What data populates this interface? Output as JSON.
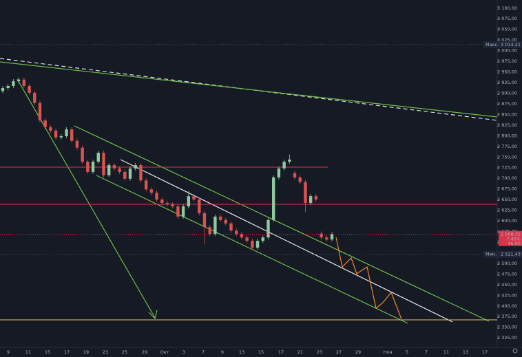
{
  "chart_data": {
    "type": "candlestick",
    "up_color": "#8fc9a0",
    "down_color": "#d9534f",
    "ylim": [
      2280,
      3119
    ],
    "yticks": [
      {
        "value": 3100,
        "label": "3 100,00"
      },
      {
        "value": 3075,
        "label": "3 075,00"
      },
      {
        "value": 3050,
        "label": "3 050,00"
      },
      {
        "value": 3025,
        "label": "3 025,00"
      },
      {
        "value": 3000,
        "label": "3 000,00"
      },
      {
        "value": 2975,
        "label": "2 975,00"
      },
      {
        "value": 2950,
        "label": "2 950,00"
      },
      {
        "value": 2925,
        "label": "2 925,00"
      },
      {
        "value": 2900,
        "label": "2 900,00"
      },
      {
        "value": 2875,
        "label": "2 875,00"
      },
      {
        "value": 2850,
        "label": "2 850,00"
      },
      {
        "value": 2825,
        "label": "2 825,00"
      },
      {
        "value": 2800,
        "label": "2 800,00"
      },
      {
        "value": 2775,
        "label": "2 775,00"
      },
      {
        "value": 2750,
        "label": "2 750,00"
      },
      {
        "value": 2725,
        "label": "2 725,00"
      },
      {
        "value": 2700,
        "label": "2 700,00"
      },
      {
        "value": 2675,
        "label": "2 675,00"
      },
      {
        "value": 2650,
        "label": "2 650,00"
      },
      {
        "value": 2625,
        "label": "2 625,00"
      },
      {
        "value": 2600,
        "label": "2 600,00"
      },
      {
        "value": 2575,
        "label": "2 575,00"
      },
      {
        "value": 2550,
        "label": "2 550,00"
      },
      {
        "value": 2525,
        "label": "2 525,00"
      },
      {
        "value": 2500,
        "label": "2 500,00"
      },
      {
        "value": 2475,
        "label": "2 475,00"
      },
      {
        "value": 2450,
        "label": "2 450,00"
      },
      {
        "value": 2425,
        "label": "2 425,00"
      },
      {
        "value": 2400,
        "label": "2 400,00"
      },
      {
        "value": 2375,
        "label": "2 375,00"
      },
      {
        "value": 2350,
        "label": "2 350,00"
      },
      {
        "value": 2325,
        "label": "2 325,00"
      }
    ],
    "categories": [
      "9",
      "11",
      "15",
      "17",
      "19",
      "23",
      "25",
      "29",
      "Окт",
      "3",
      "7",
      "9",
      "13",
      "15",
      "17",
      "21",
      "23",
      "27",
      "29",
      "Ноя",
      "5",
      "7",
      "11",
      "13",
      "17"
    ],
    "candles": [
      [
        2905,
        2917,
        2900,
        2912
      ],
      [
        2912,
        2922,
        2907,
        2917
      ],
      [
        2917,
        2933,
        2912,
        2928
      ],
      [
        2928,
        2937,
        2923,
        2932
      ],
      [
        2932,
        2937,
        2912,
        2917
      ],
      [
        2917,
        2922,
        2896,
        2901
      ],
      [
        2901,
        2906,
        2872,
        2877
      ],
      [
        2877,
        2882,
        2831,
        2836
      ],
      [
        2836,
        2841,
        2815,
        2820
      ],
      [
        2820,
        2825,
        2807,
        2812
      ],
      [
        2812,
        2817,
        2791,
        2796
      ],
      [
        2796,
        2804,
        2791,
        2799
      ],
      [
        2799,
        2820,
        2794,
        2815
      ],
      [
        2815,
        2820,
        2783,
        2788
      ],
      [
        2788,
        2793,
        2767,
        2772
      ],
      [
        2772,
        2777,
        2734,
        2739
      ],
      [
        2739,
        2744,
        2710,
        2715
      ],
      [
        2715,
        2744,
        2710,
        2739
      ],
      [
        2739,
        2765,
        2734,
        2760
      ],
      [
        2760,
        2765,
        2702,
        2707
      ],
      [
        2707,
        2736,
        2702,
        2731
      ],
      [
        2731,
        2736,
        2718,
        2723
      ],
      [
        2723,
        2728,
        2710,
        2715
      ],
      [
        2715,
        2720,
        2694,
        2699
      ],
      [
        2699,
        2728,
        2694,
        2723
      ],
      [
        2723,
        2736,
        2718,
        2731
      ],
      [
        2731,
        2736,
        2690,
        2695
      ],
      [
        2695,
        2700,
        2669,
        2674
      ],
      [
        2674,
        2679,
        2661,
        2666
      ],
      [
        2666,
        2671,
        2645,
        2650
      ],
      [
        2650,
        2655,
        2637,
        2642
      ],
      [
        2642,
        2647,
        2634,
        2639
      ],
      [
        2639,
        2644,
        2629,
        2634
      ],
      [
        2634,
        2639,
        2605,
        2610
      ],
      [
        2610,
        2639,
        2605,
        2634
      ],
      [
        2634,
        2670,
        2629,
        2658
      ],
      [
        2658,
        2663,
        2645,
        2650
      ],
      [
        2650,
        2655,
        2613,
        2618
      ],
      [
        2618,
        2623,
        2545,
        2585
      ],
      [
        2585,
        2590,
        2564,
        2569
      ],
      [
        2569,
        2615,
        2564,
        2610
      ],
      [
        2610,
        2615,
        2597,
        2602
      ],
      [
        2602,
        2607,
        2589,
        2594
      ],
      [
        2594,
        2599,
        2572,
        2577
      ],
      [
        2577,
        2582,
        2564,
        2569
      ],
      [
        2569,
        2574,
        2556,
        2561
      ],
      [
        2561,
        2566,
        2548,
        2553
      ],
      [
        2553,
        2558,
        2532,
        2537
      ],
      [
        2537,
        2558,
        2532,
        2553
      ],
      [
        2553,
        2566,
        2548,
        2561
      ],
      [
        2561,
        2607,
        2556,
        2602
      ],
      [
        2602,
        2707,
        2597,
        2702
      ],
      [
        2702,
        2728,
        2697,
        2723
      ],
      [
        2723,
        2744,
        2718,
        2739
      ],
      [
        2739,
        2756,
        2734,
        2744
      ],
      [
        2712,
        2717,
        2697,
        2702
      ],
      [
        2702,
        2707,
        2686,
        2691
      ],
      [
        2691,
        2696,
        2620,
        2642
      ],
      [
        2642,
        2663,
        2637,
        2658
      ],
      [
        2658,
        2663,
        2645,
        2650
      ],
      [
        2570,
        2575,
        2556,
        2561
      ],
      [
        2561,
        2566,
        2551,
        2556
      ],
      [
        2556,
        2574,
        2551,
        2569
      ]
    ],
    "max_label": {
      "name": "Макс.",
      "value": 3014.21,
      "label": "3 014,21"
    },
    "min_label": {
      "name": "Мин.",
      "value": 2521.43,
      "label": "2 521,43"
    },
    "last_price": {
      "value": 2568.32,
      "label": "2 568,32",
      "change": "-7,45%",
      "countdown": "46:00"
    }
  }
}
